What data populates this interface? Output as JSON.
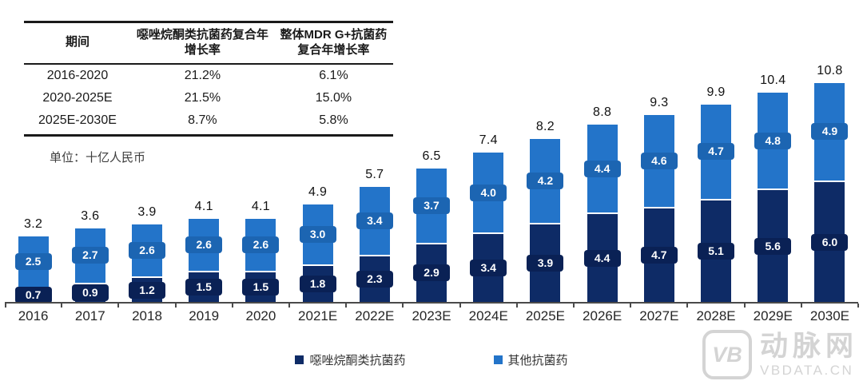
{
  "table": {
    "headers": [
      "期间",
      "噁唑烷酮类抗菌药复合年增长率",
      "整体MDR G+抗菌药复合年增长率"
    ],
    "rows": [
      {
        "period": "2016-2020",
        "oxa_cagr": "21.2%",
        "mdr_cagr": "6.1%"
      },
      {
        "period": "2020-2025E",
        "oxa_cagr": "21.5%",
        "mdr_cagr": "15.0%"
      },
      {
        "period": "2025E-2030E",
        "oxa_cagr": "8.7%",
        "mdr_cagr": "5.8%"
      }
    ]
  },
  "unit_label": "单位：十亿人民币",
  "chart_data": {
    "type": "bar",
    "stacked": true,
    "title": "",
    "xlabel": "",
    "ylabel": "十亿人民币",
    "ylim": [
      0,
      11
    ],
    "grid": false,
    "legend_position": "bottom",
    "categories": [
      "2016",
      "2017",
      "2018",
      "2019",
      "2020",
      "2021E",
      "2022E",
      "2023E",
      "2024E",
      "2025E",
      "2026E",
      "2027E",
      "2028E",
      "2029E",
      "2030E"
    ],
    "series": [
      {
        "name": "噁唑烷酮类抗菌药",
        "color": "#0E2B66",
        "label_bg": "#0A2155",
        "values": [
          0.7,
          0.9,
          1.2,
          1.5,
          1.5,
          1.8,
          2.3,
          2.9,
          3.4,
          3.9,
          4.4,
          4.7,
          5.1,
          5.6,
          6.0
        ]
      },
      {
        "name": "其他抗菌药",
        "color": "#2374C9",
        "label_bg": "#1C65B2",
        "values": [
          2.5,
          2.7,
          2.6,
          2.6,
          2.6,
          3.0,
          3.4,
          3.7,
          4.0,
          4.2,
          4.4,
          4.6,
          4.7,
          4.8,
          4.9
        ]
      }
    ],
    "totals": [
      3.2,
      3.6,
      3.9,
      4.1,
      4.1,
      4.9,
      5.7,
      6.5,
      7.4,
      8.2,
      8.8,
      9.3,
      9.9,
      10.4,
      10.8
    ]
  },
  "legend": [
    {
      "label": "噁唑烷酮类抗菌药",
      "color": "#0E2B66"
    },
    {
      "label": "其他抗菌药",
      "color": "#2374C9"
    }
  ],
  "watermark": {
    "logo": "VB",
    "name": "动脉网",
    "site": "VBDATA.CN"
  }
}
